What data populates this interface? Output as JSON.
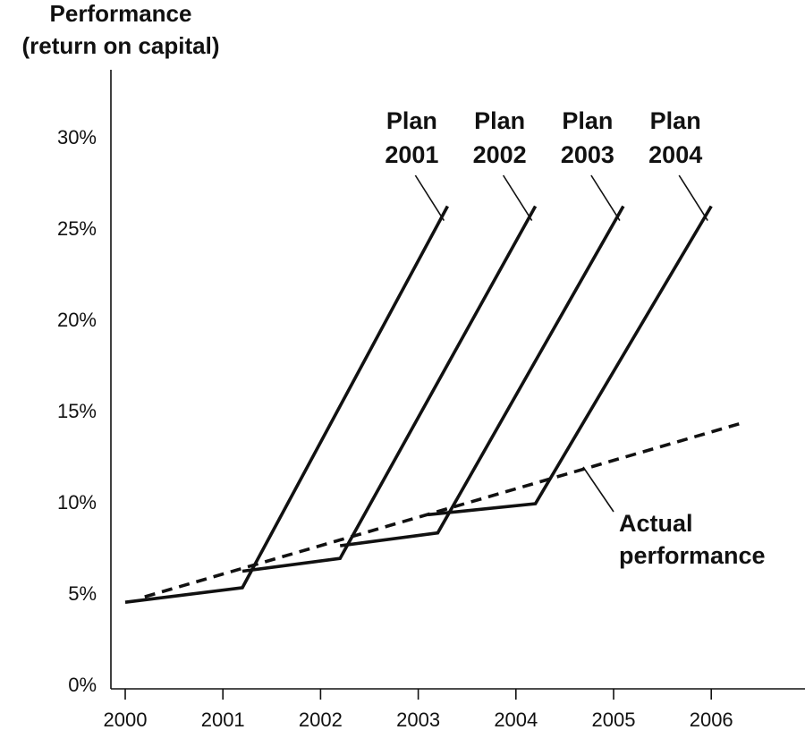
{
  "chart_data": {
    "type": "line",
    "ylabel": [
      "Performance",
      "(return on capital)"
    ],
    "xlabel": "",
    "x_ticks": [
      "2000",
      "2001",
      "2002",
      "2003",
      "2004",
      "2005",
      "2006"
    ],
    "y_ticks": [
      "0%",
      "5%",
      "10%",
      "15%",
      "20%",
      "25%",
      "30%"
    ],
    "xlim": [
      2000,
      2006.8
    ],
    "ylim": [
      0,
      33
    ],
    "grid": false,
    "series": [
      {
        "name": "Plan 2001",
        "label_lines": [
          "Plan",
          "2001"
        ],
        "style": "solid",
        "points": [
          [
            2000,
            4.5
          ],
          [
            2001.2,
            5.3
          ],
          [
            2003.3,
            26.2
          ]
        ]
      },
      {
        "name": "Plan 2002",
        "label_lines": [
          "Plan",
          "2002"
        ],
        "style": "solid",
        "points": [
          [
            2001.2,
            6.2
          ],
          [
            2002.2,
            6.9
          ],
          [
            2004.2,
            26.2
          ]
        ]
      },
      {
        "name": "Plan 2003",
        "label_lines": [
          "Plan",
          "2003"
        ],
        "style": "solid",
        "points": [
          [
            2002.2,
            7.6
          ],
          [
            2003.2,
            8.3
          ],
          [
            2005.1,
            26.2
          ]
        ]
      },
      {
        "name": "Plan 2004",
        "label_lines": [
          "Plan",
          "2004"
        ],
        "style": "solid",
        "points": [
          [
            2003.1,
            9.3
          ],
          [
            2004.2,
            9.9
          ],
          [
            2006.0,
            26.2
          ]
        ]
      },
      {
        "name": "Actual performance",
        "label_lines": [
          "Actual",
          "performance"
        ],
        "style": "dashed",
        "points": [
          [
            2000.2,
            4.8
          ],
          [
            2006.3,
            14.3
          ]
        ]
      }
    ]
  }
}
